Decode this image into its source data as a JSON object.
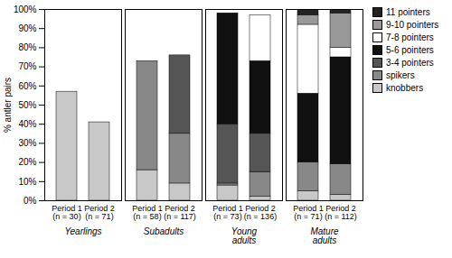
{
  "chart_data": {
    "type": "bar",
    "stacked": true,
    "categories": [
      "Period 1\n(n = 30)",
      "Period 2\n(n = 71)",
      "Period 1\n(n = 58)",
      "Period 2\n(n = 117)",
      "Period 1\n(n = 73)",
      "Period 2\n(n = 136)",
      "Period 1\n(n = 71)",
      "Period 2\n(n = 112)"
    ],
    "group_labels": [
      "Yearlings",
      "Subadults",
      "Young\nadults",
      "Mature\nadults"
    ],
    "series": [
      {
        "name": "knobbers",
        "color": "#c8c8c8",
        "values": [
          57,
          41,
          16,
          9,
          8,
          2,
          5,
          3
        ]
      },
      {
        "name": "spikers",
        "color": "#888888",
        "values": [
          0,
          0,
          57,
          26,
          1,
          13,
          15,
          16
        ]
      },
      {
        "name": "3-4 pointers",
        "color": "#555555",
        "values": [
          0,
          0,
          0,
          41,
          31,
          20,
          0,
          0
        ]
      },
      {
        "name": "5-6 pointers",
        "color": "#111111",
        "values": [
          0,
          0,
          0,
          0,
          58,
          38,
          36,
          56
        ]
      },
      {
        "name": "7-8 pointers",
        "color": "#ffffff",
        "values": [
          0,
          0,
          0,
          0,
          0,
          24,
          36,
          5
        ]
      },
      {
        "name": "9-10 pointers",
        "color": "#999999",
        "values": [
          0,
          0,
          0,
          0,
          0,
          0,
          5,
          18
        ]
      },
      {
        "name": "11 pointers",
        "color": "#222222",
        "values": [
          0,
          0,
          0,
          0,
          0,
          0,
          3,
          2
        ]
      }
    ],
    "ylabel": "% antler pairs",
    "ylim": [
      0,
      100
    ],
    "yticks": [
      {
        "value": 0,
        "label": "0%"
      },
      {
        "value": 10,
        "label": "10%"
      },
      {
        "value": 20,
        "label": "20%"
      },
      {
        "value": 30,
        "label": "30%"
      },
      {
        "value": 40,
        "label": "40%"
      },
      {
        "value": 50,
        "label": "50%"
      },
      {
        "value": 60,
        "label": "60%"
      },
      {
        "value": 70,
        "label": "70%"
      },
      {
        "value": 80,
        "label": "80%"
      },
      {
        "value": 90,
        "label": "90%"
      },
      {
        "value": 100,
        "label": "100%"
      }
    ],
    "grid": false,
    "legend": "right"
  }
}
